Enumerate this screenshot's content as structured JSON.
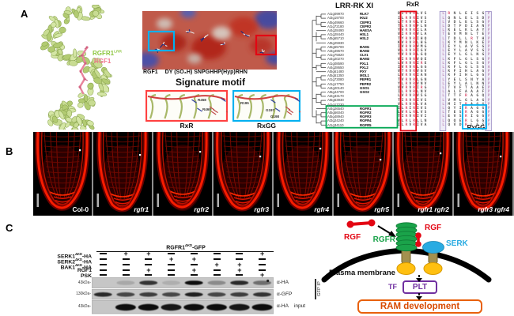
{
  "panelA": {
    "label": "A",
    "structure": {
      "receptor_label": "RGFR1",
      "receptor_sup": "LRR",
      "receptor_color": "#8dc63f",
      "ligand_label": "RGF1",
      "ligand_color": "#f0768e"
    },
    "surface": {
      "peptide_prefix": "RGF1",
      "peptide_seq": "DY (SO₃H) SNPGHHP(Hyp)RHN"
    },
    "signature": {
      "title": "Signature motif",
      "rxr_label": "RxR",
      "rxgg_label": "RxGG",
      "rxr_residues": [
        "R458",
        "R460"
      ],
      "rxgg_residues": [
        "R195",
        "G197",
        "G198"
      ]
    },
    "tree": {
      "title": "LRR-RK XI",
      "highlight_color": "#00a651",
      "entries": [
        {
          "id": "At1g09970",
          "name": "RLK7"
        },
        {
          "id": "At3g19700",
          "name": "IKU2"
        },
        {
          "id": "At5g49660",
          "name": "CEPR1"
        },
        {
          "id": "At1g72180",
          "name": "CEPR2"
        },
        {
          "id": "At4g28490",
          "name": "HAESA"
        },
        {
          "id": "At1g28440",
          "name": "HSL1"
        },
        {
          "id": "At5g65710",
          "name": "HSL2"
        },
        {
          "id": "At5g25930",
          "name": ""
        },
        {
          "id": "At5g65700",
          "name": "BAM1"
        },
        {
          "id": "At3g49670",
          "name": "BAM2"
        },
        {
          "id": "At1g75820",
          "name": "CLV1"
        },
        {
          "id": "At4g20270",
          "name": "BAM3"
        },
        {
          "id": "At1g08590",
          "name": "PXL1"
        },
        {
          "id": "At4g28650",
          "name": "PXL2"
        },
        {
          "id": "At5g61480",
          "name": "PXY"
        },
        {
          "id": "At5g51350",
          "name": "MOL1"
        },
        {
          "id": "At1g73080",
          "name": "PEPR1"
        },
        {
          "id": "At1g17750",
          "name": "PEPR2"
        },
        {
          "id": "At4g20140",
          "name": "GSO1"
        },
        {
          "id": "At5g44700",
          "name": "GSO2"
        },
        {
          "id": "At2g33170",
          "name": ""
        },
        {
          "id": "At5g63930",
          "name": ""
        },
        {
          "id": "At1g17230",
          "name": ""
        },
        {
          "id": "At4g26540",
          "name": "RGFR1"
        },
        {
          "id": "At5g56040",
          "name": "RGFR2"
        },
        {
          "id": "At5g48940",
          "name": "RGFR3"
        },
        {
          "id": "At3g24240",
          "name": "RGFR4"
        },
        {
          "id": "At1g34110",
          "name": "RGFR5"
        }
      ],
      "highlight_rows": [
        23,
        27
      ],
      "topology": {
        "pairs": [
          [
            0,
            1
          ],
          [
            2,
            3
          ],
          [
            5,
            6
          ],
          [
            8,
            9
          ],
          [
            10,
            11
          ],
          [
            12,
            13
          ],
          [
            15,
            16
          ],
          [
            17,
            18
          ],
          [
            19,
            20
          ],
          [
            21,
            22
          ],
          [
            24,
            25
          ],
          [
            26,
            27
          ]
        ],
        "clusters": [
          [
            0,
            3
          ],
          [
            4,
            7
          ],
          [
            8,
            11
          ],
          [
            12,
            14
          ],
          [
            15,
            18
          ],
          [
            19,
            22
          ],
          [
            23,
            27
          ]
        ]
      }
    },
    "alignment": {
      "rxr_label": "RxR",
      "rxgg_label": "RxGG",
      "left_rows": [
        "DIRVRLVS",
        "ILRVRIVS",
        "LTRVRLVI",
        "TLRVRFLN",
        "YVRVRILA",
        "VIRVRVLA",
        "TYRVRIHQ",
        "KVRVRLHG",
        "IVRVRVMG",
        "VLRVRIGV",
        "YVRVRLGQ",
        "VIRVRVQE",
        "LVRVRIRE",
        "IVRVRLGG",
        "VTRVRVGV",
        "LVRVRIAN",
        "TVRVRLGN",
        "YLRVRVNV",
        "VVRVRIRG",
        "ILRVRLNV",
        "LVRVRVSG",
        "TIRVRIVS",
        "VLRVRLVA",
        "ILRIRIVS",
        "LVRLRLVS",
        "TIRVRIVI",
        "VLRLRLLN",
        "ILRVRIVA"
      ],
      "right_rows": [
        "LRNLEISGP",
        "LQNLELSDP",
        "LVDLELSGP",
        "LDTFDIANP",
        "LKELKLAYP",
        "TEVMNLTEP",
        "LTDLLRTHP",
        "LKYMNLKEP",
        "IEYLAVSGP",
        "LEYLAVSGP",
        "LEYLGLNGP",
        "LKFLGLSGP",
        "LKFLGLSGP",
        "LKFLGLSGA",
        "LKFIHLAGP",
        "LKFIHLGGP",
        "LYELSNYAP",
        "LEYLALNNP",
        "LTVFTAAEP",
        "LALFAAAFP",
        "LTTFRAGQP",
        "LVMLGLAGP",
        "LMITRAGGP",
        "LQYIRAGGP",
        "LTESRAGGP",
        "LEVSRIGGP",
        "LQQERLGGP",
        "LQVDRLGGP"
      ]
    }
  },
  "panelB": {
    "label": "B",
    "images": [
      {
        "name": "Col-0",
        "italic": false
      },
      {
        "name": "rgfr1",
        "italic": true
      },
      {
        "name": "rgfr2",
        "italic": true
      },
      {
        "name": "rgfr3",
        "italic": true
      },
      {
        "name": "rgfr4",
        "italic": true
      },
      {
        "name": "rgfr5",
        "italic": true
      },
      {
        "name": "rgfr1 rgfr2",
        "italic": true
      },
      {
        "name": "rgfr3 rgfr4",
        "italic": true
      }
    ]
  },
  "panelC": {
    "label": "C",
    "blot": {
      "header": "RGFR1",
      "header_sup": "ΔKD",
      "header_suffix": "-GFP",
      "rows": [
        {
          "label": "SERK1",
          "sup": "ΔKD",
          "suffix": "-HA",
          "values": [
            "−",
            "+",
            "+",
            "−",
            "−",
            "−",
            "−",
            "+"
          ]
        },
        {
          "label": "SERK2",
          "sup": "ΔKD",
          "suffix": "-HA",
          "values": [
            "−",
            "−",
            "−",
            "+",
            "+",
            "−",
            "−",
            "−"
          ]
        },
        {
          "label": "BAK1",
          "sup": "ΔKD",
          "suffix": "-HA",
          "values": [
            "−",
            "−",
            "−",
            "−",
            "−",
            "+",
            "+",
            "−"
          ]
        },
        {
          "label": "RGF1",
          "sup": "",
          "suffix": "",
          "values": [
            "−",
            "−",
            "+",
            "−",
            "+",
            "−",
            "+",
            "−"
          ]
        },
        {
          "label": "PSK",
          "sup": "",
          "suffix": "",
          "values": [
            "−",
            "−",
            "−",
            "−",
            "−",
            "−",
            "−",
            "+"
          ]
        }
      ],
      "strips": [
        {
          "antibody": "α-HA",
          "note": "",
          "marker": "43kDa-",
          "bands": [
            0,
            0.15,
            0.8,
            0.12,
            1,
            0.3,
            0.85,
            0.5
          ]
        },
        {
          "antibody": "α-GFP",
          "note": "",
          "marker": "130kDa-",
          "bands": [
            0.85,
            0.7,
            0.75,
            0.7,
            0.9,
            0.7,
            0.75,
            0.8
          ]
        },
        {
          "antibody": "α-HA",
          "note": "input",
          "marker": "43kDa-",
          "bands": [
            0,
            1,
            1,
            0.95,
            1,
            1,
            0.95,
            1
          ]
        }
      ],
      "ip_label": "GFP IP"
    },
    "schematic": {
      "rgf_label": "RGF",
      "rgfr_label": "RGFR",
      "serk_label": "SERK",
      "membrane_label": "Plasma membrane",
      "tf_label": "TF",
      "plt_label": "PLT",
      "ram_label": "RAM development",
      "colors": {
        "rgf": "#e30613",
        "rgfr": "#1aa34a",
        "serk": "#29abe2",
        "plt": "#7030a0",
        "ram": "#e8600c",
        "tm": "#a3914f",
        "kinase": "#ffc010"
      }
    }
  }
}
